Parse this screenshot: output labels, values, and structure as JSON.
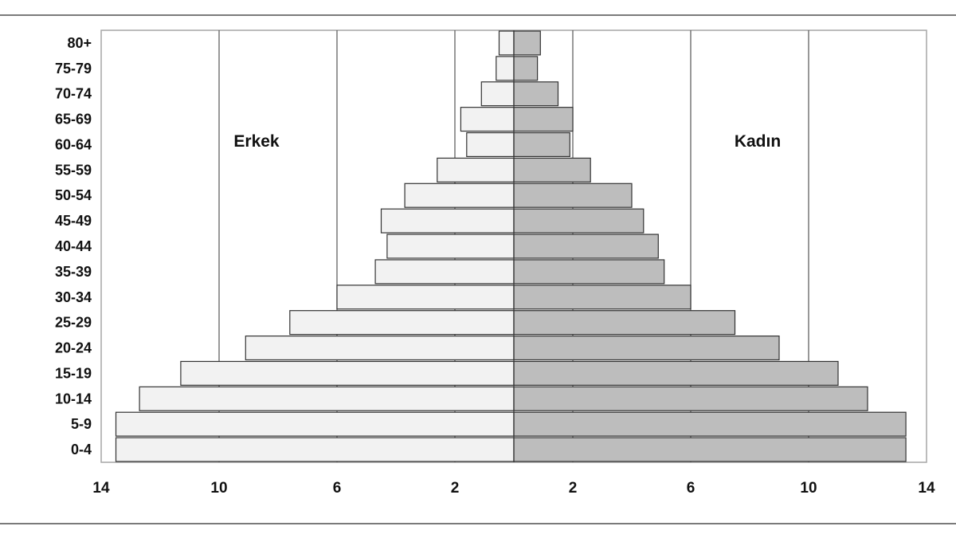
{
  "chart_data": {
    "type": "bar",
    "orientation": "horizontal",
    "layout": "population-pyramid",
    "title": "",
    "xlabel": "",
    "ylabel": "",
    "categories": [
      "0-4",
      "5-9",
      "10-14",
      "15-19",
      "20-24",
      "25-29",
      "30-34",
      "35-39",
      "40-44",
      "45-49",
      "50-54",
      "55-59",
      "60-64",
      "65-69",
      "70-74",
      "75-79",
      "80+"
    ],
    "series": [
      {
        "name": "Erkek",
        "side": "left",
        "color": "#f2f2f2",
        "values": [
          13.5,
          13.5,
          12.7,
          11.3,
          9.1,
          7.6,
          6.0,
          4.7,
          4.3,
          4.5,
          3.7,
          2.6,
          1.6,
          1.8,
          1.1,
          0.6,
          0.5
        ]
      },
      {
        "name": "Kadın",
        "side": "right",
        "color": "#bdbdbd",
        "values": [
          13.3,
          13.3,
          12.0,
          11.0,
          9.0,
          7.5,
          6.0,
          5.1,
          4.9,
          4.4,
          4.0,
          2.6,
          1.9,
          2.0,
          1.5,
          0.8,
          0.9
        ]
      }
    ],
    "xlim": [
      -14,
      14
    ],
    "x_ticks": [
      {
        "value": -14,
        "label": "14"
      },
      {
        "value": -10,
        "label": "10"
      },
      {
        "value": -6,
        "label": "6"
      },
      {
        "value": -2,
        "label": "2"
      },
      {
        "value": 2,
        "label": "2"
      },
      {
        "value": 6,
        "label": "6"
      },
      {
        "value": 10,
        "label": "10"
      },
      {
        "value": 14,
        "label": "14"
      }
    ],
    "grid": true,
    "legend": "inline labels"
  }
}
